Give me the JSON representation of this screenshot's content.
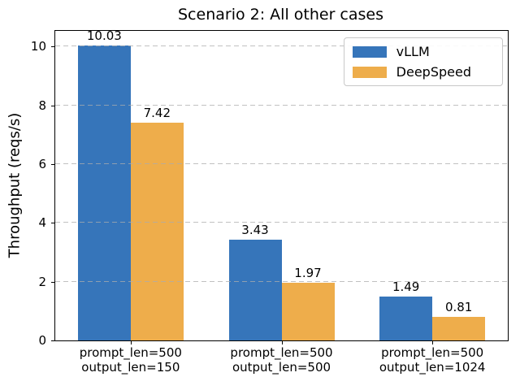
{
  "chart_data": {
    "type": "bar",
    "title": "Scenario 2: All other cases",
    "xlabel": "",
    "ylabel": "Throughput (reqs/s)",
    "categories": [
      {
        "line1": "prompt_len=500",
        "line2": "output_len=150"
      },
      {
        "line1": "prompt_len=500",
        "line2": "output_len=500"
      },
      {
        "line1": "prompt_len=500",
        "line2": "output_len=1024"
      }
    ],
    "series": [
      {
        "name": "vLLM",
        "color": "#3675ba",
        "values": [
          10.03,
          3.43,
          1.49
        ]
      },
      {
        "name": "DeepSpeed",
        "color": "#eead4b",
        "values": [
          7.42,
          1.97,
          0.81
        ]
      }
    ],
    "value_labels": [
      [
        "10.03",
        "3.43",
        "1.49"
      ],
      [
        "7.42",
        "1.97",
        "0.81"
      ]
    ],
    "yticks": [
      0,
      2,
      4,
      6,
      8,
      10
    ],
    "ylim": [
      0,
      10.53
    ],
    "grid": "horizontal-dashed",
    "legend_position": "upper-right",
    "colors": {
      "grid": "#acacac",
      "spine": "#000000",
      "background": "#ffffff"
    }
  }
}
